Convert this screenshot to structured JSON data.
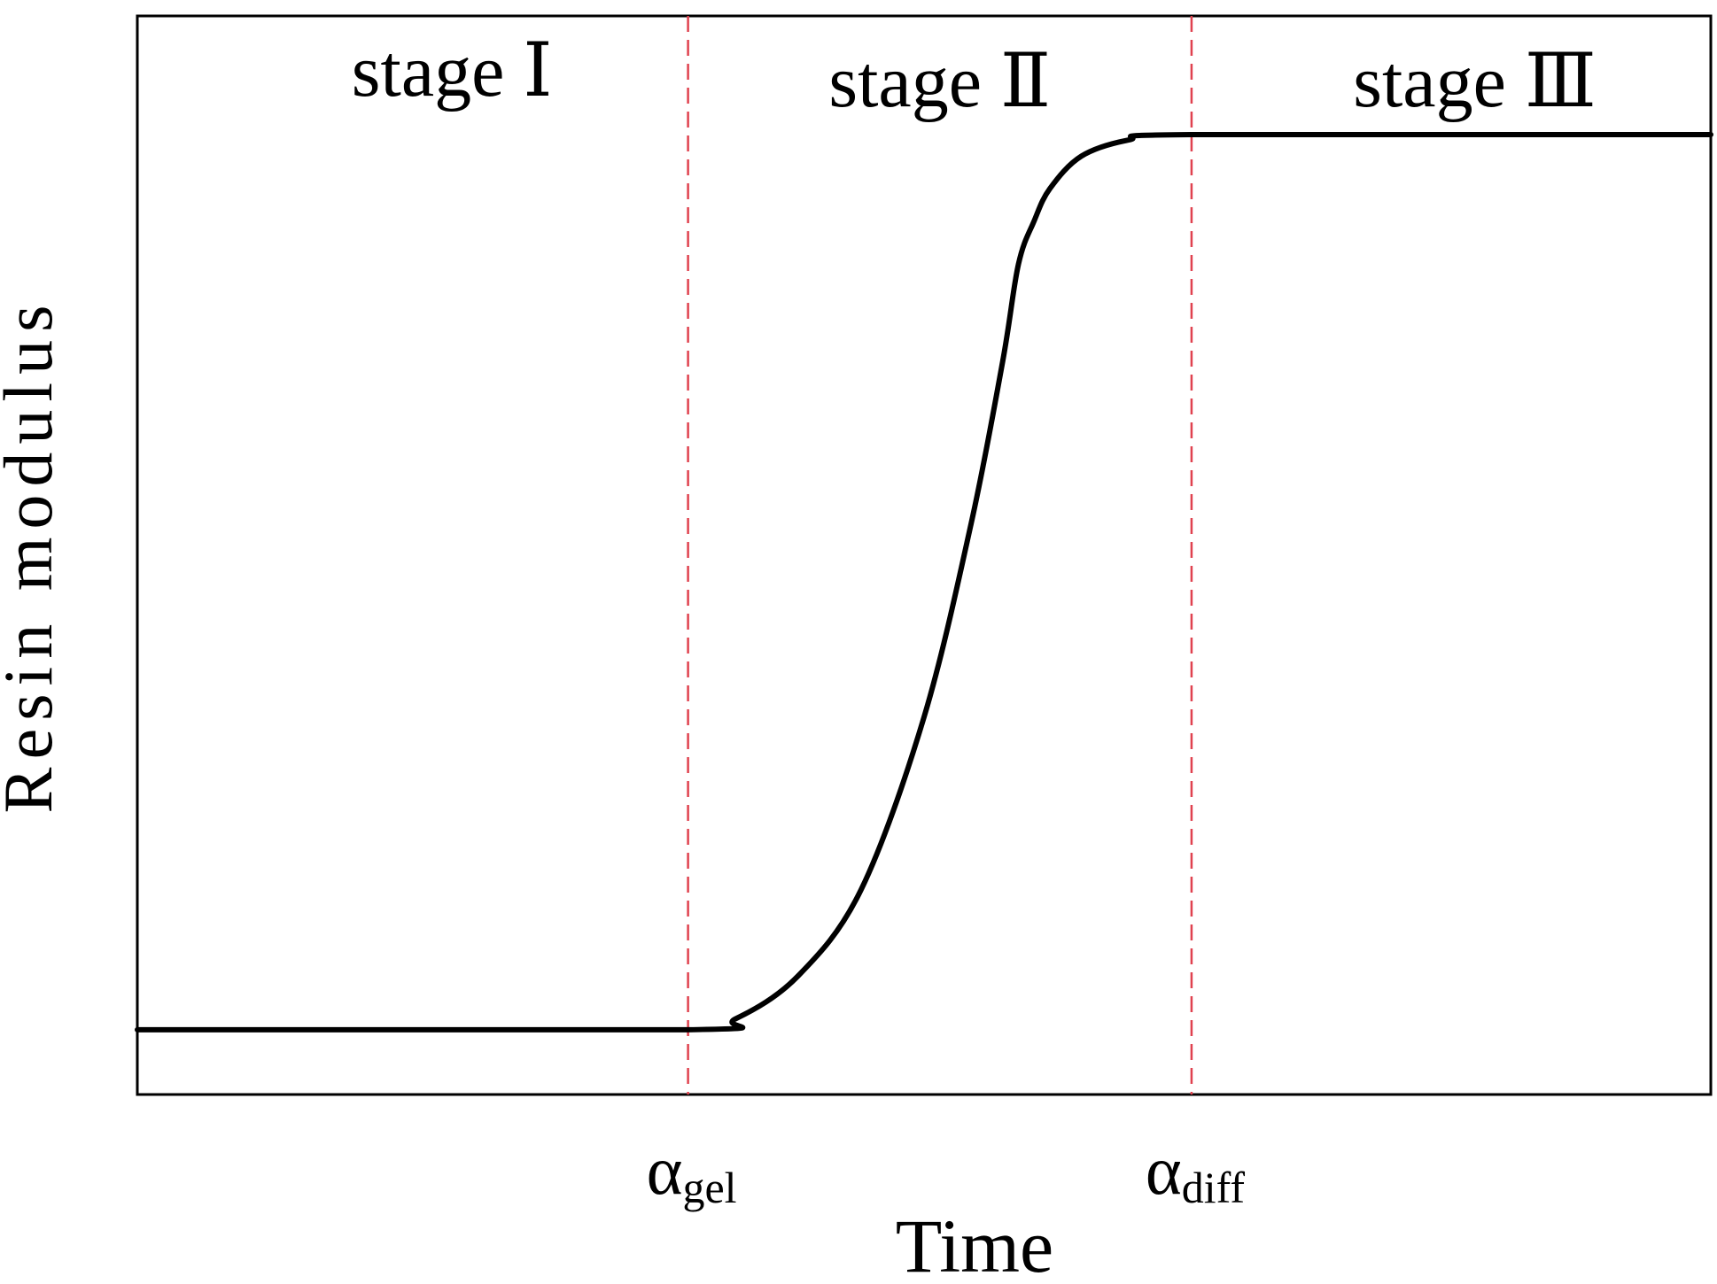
{
  "chart_data": {
    "type": "line",
    "title": "",
    "xlabel": "Time",
    "ylabel": "Resin modulus",
    "xlim": [
      0,
      100
    ],
    "ylim": [
      0,
      100
    ],
    "grid": false,
    "legend": "none",
    "stage_labels": [
      {
        "text": "stage Ⅰ",
        "x": 20
      },
      {
        "text": "stage Ⅱ",
        "x": 51
      },
      {
        "text": "stage Ⅲ",
        "x": 85
      }
    ],
    "markers": [
      {
        "symbol": "α",
        "subscript": "gel",
        "x": 35
      },
      {
        "symbol": "α",
        "subscript": "diff",
        "x": 67
      }
    ],
    "series": [
      {
        "color": "#000000",
        "x": [
          0,
          35,
          38,
          42,
          46,
          50,
          53,
          55,
          56,
          57,
          58,
          60,
          63,
          67,
          100
        ],
        "y": [
          6,
          6,
          7,
          11,
          19,
          35,
          53,
          68,
          77,
          81,
          84,
          87,
          88.5,
          89,
          89
        ]
      }
    ],
    "colors": {
      "curve": "#000000",
      "marker_line": "#e0424f",
      "frame": "#000000"
    }
  }
}
